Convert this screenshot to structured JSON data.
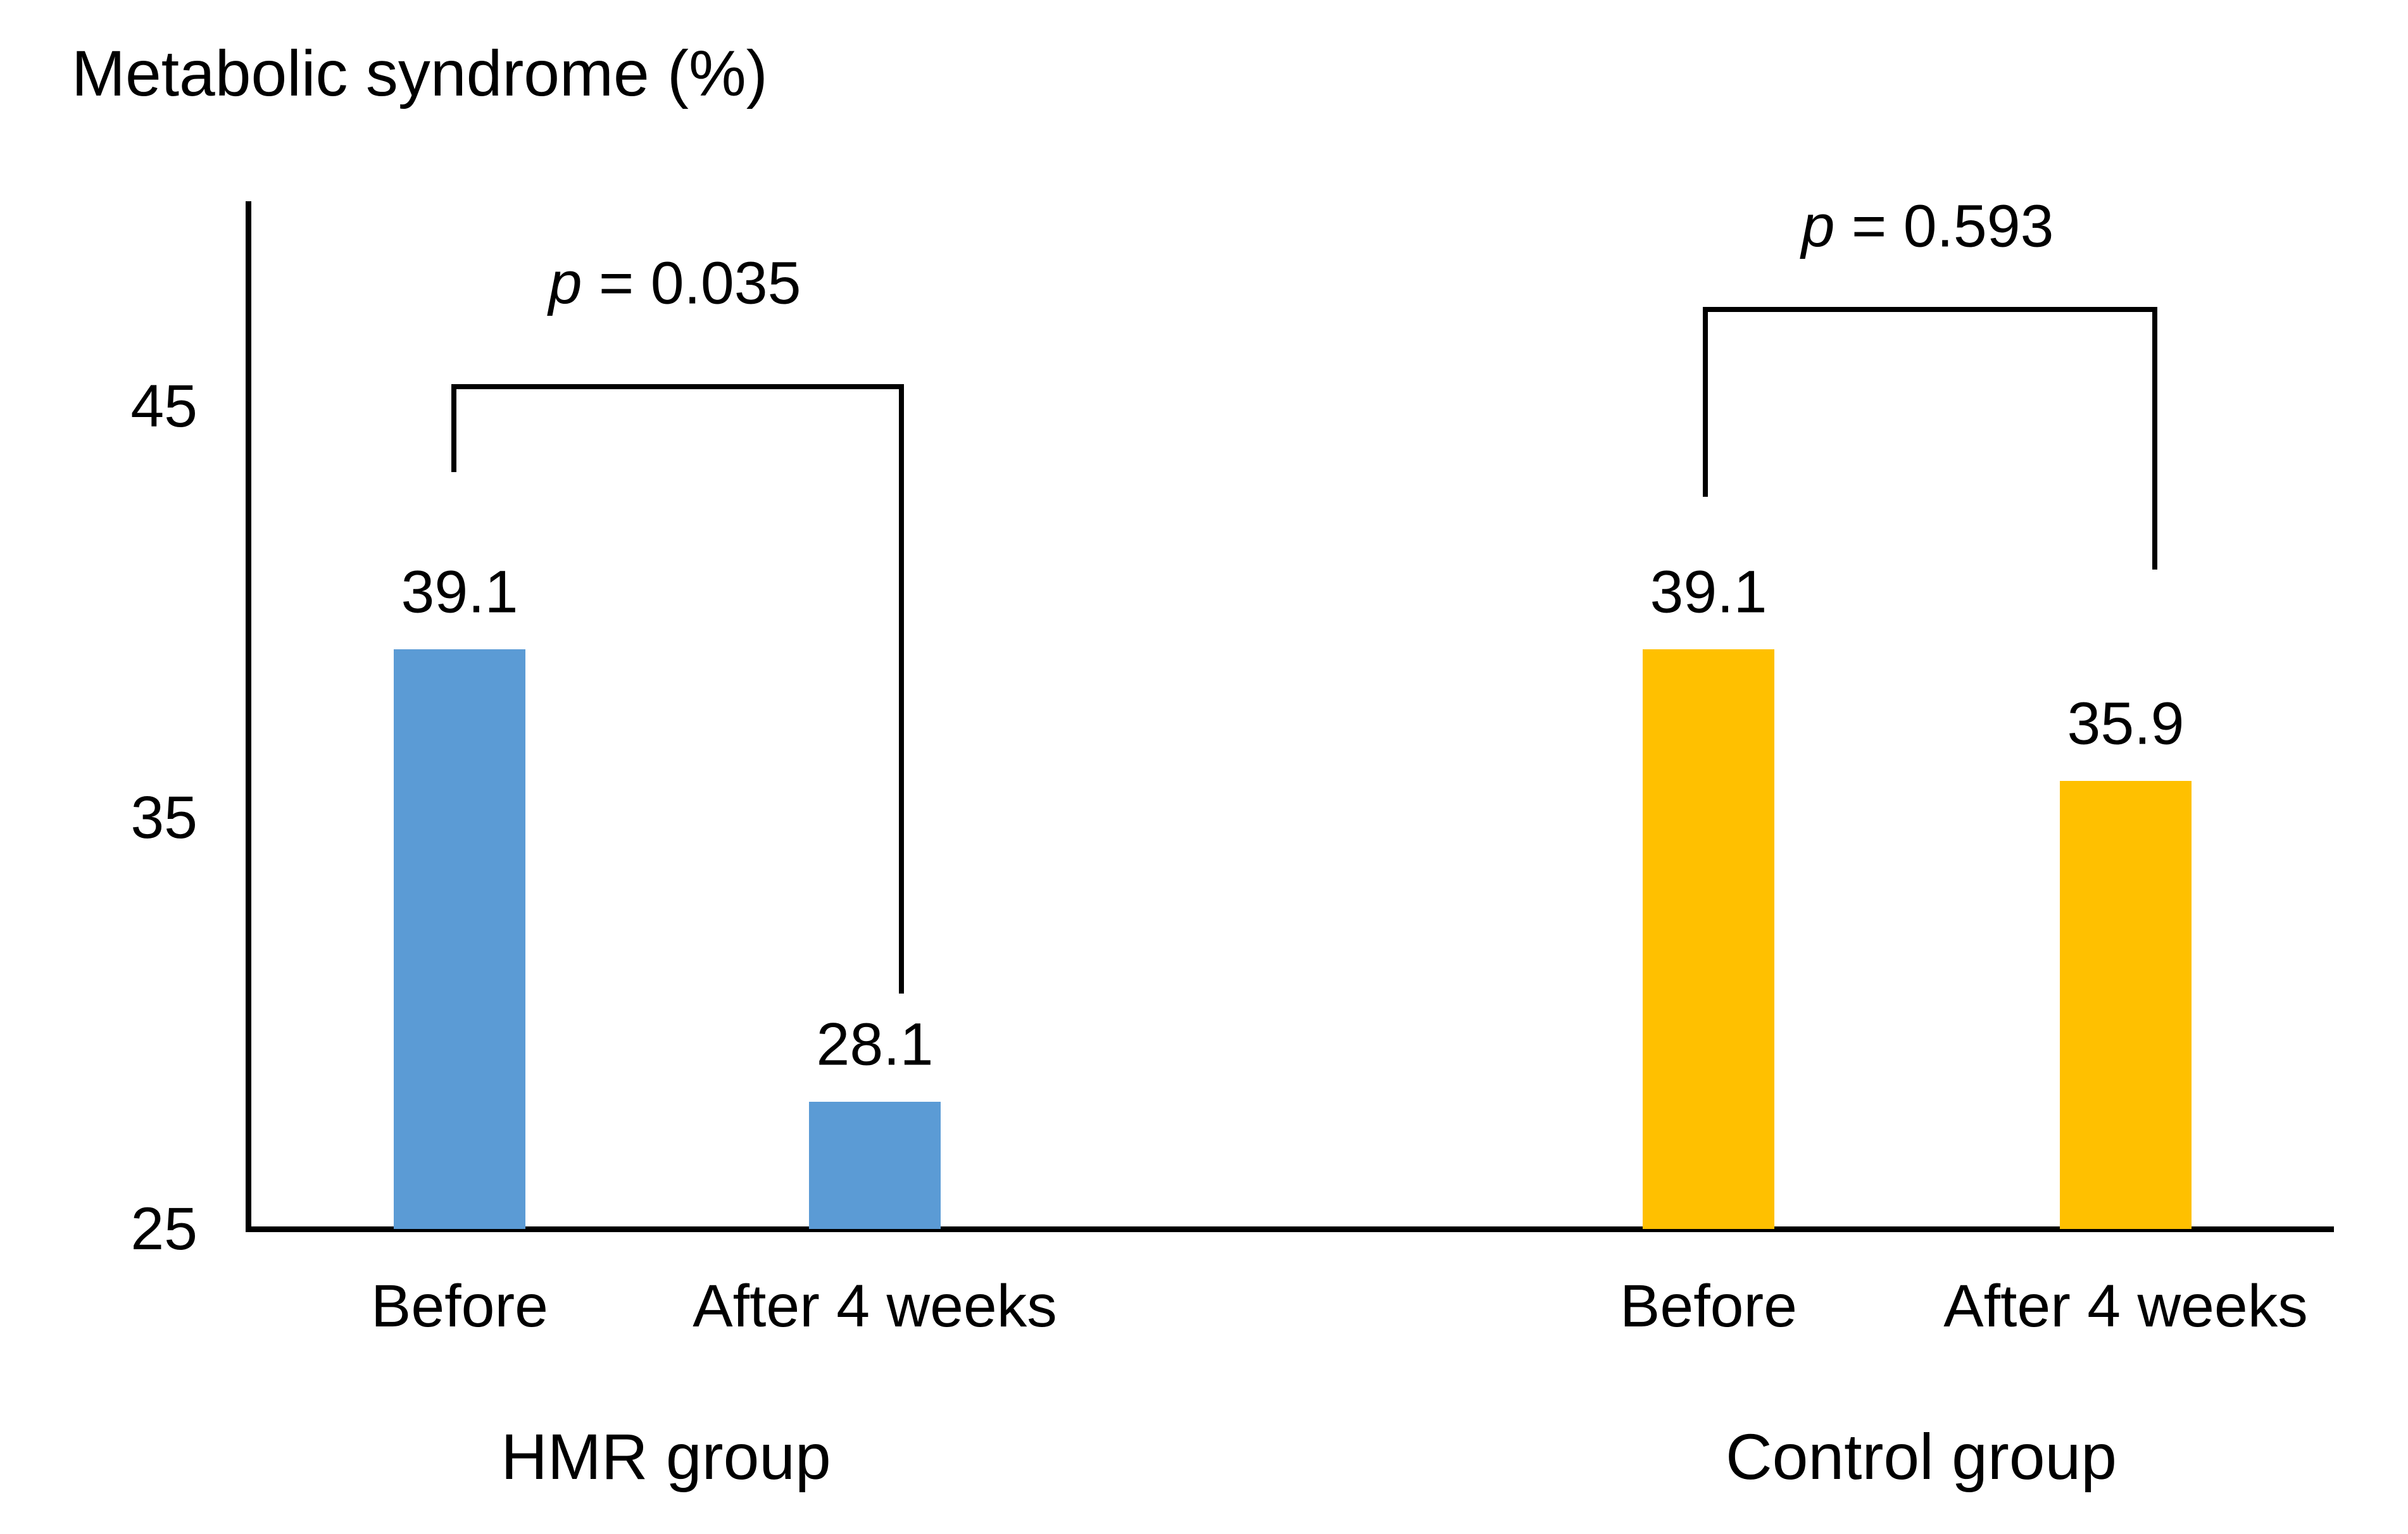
{
  "title": "Metabolic syndrome (%)",
  "colors": {
    "hmr_bar": "#5B9BD5",
    "control_bar": "#FFC000",
    "axis": "#000000",
    "text": "#000000",
    "background": "#FFFFFF"
  },
  "chart_data": {
    "type": "bar",
    "title": "Metabolic syndrome (%)",
    "ylabel": "Metabolic syndrome (%)",
    "xlabel": "",
    "ylim": [
      25,
      45
    ],
    "yticks": [
      45,
      35,
      25
    ],
    "grid": false,
    "legend": "none",
    "groups": [
      {
        "name": "HMR group",
        "color": "#5B9BD5",
        "p_label": {
          "prefix": "p",
          "rest": " = 0.035"
        },
        "bars": [
          {
            "label": "Before",
            "value": 39.1
          },
          {
            "label": "After 4 weeks",
            "value": 28.1
          }
        ]
      },
      {
        "name": "Control group",
        "color": "#FFC000",
        "p_label": {
          "prefix": "p",
          "rest": " = 0.593"
        },
        "bars": [
          {
            "label": "Before",
            "value": 39.1
          },
          {
            "label": "After 4 weeks",
            "value": 35.9
          }
        ]
      }
    ]
  }
}
